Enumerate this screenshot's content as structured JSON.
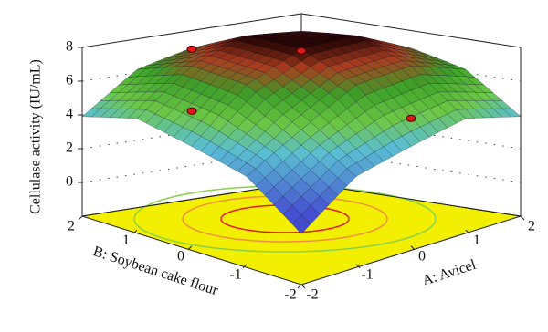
{
  "chart_data": {
    "type": "surface3d",
    "zlabel": "Cellulase activity (IU/mL)",
    "xlabel": "A: Avicel",
    "ylabel": "B: Soybean cake flour",
    "x": [
      -2,
      -1,
      0,
      1,
      2
    ],
    "y": [
      -2,
      -1,
      0,
      1,
      2
    ],
    "z": [
      [
        1.0,
        3.2,
        3.9,
        4.6,
        3.9
      ],
      [
        3.2,
        4.9,
        6.6,
        6.9,
        6.0
      ],
      [
        3.9,
        6.6,
        7.9,
        8.0,
        6.7
      ],
      [
        4.6,
        6.9,
        8.0,
        7.7,
        6.2
      ],
      [
        3.9,
        6.0,
        6.7,
        6.2,
        4.3
      ]
    ],
    "xlim": [
      -2,
      2
    ],
    "ylim": [
      -2,
      2
    ],
    "zlim": [
      -2,
      8
    ],
    "xticks": [
      -2,
      -1,
      0,
      1,
      2
    ],
    "yticks": [
      -2,
      -1,
      0,
      1,
      2
    ],
    "zticks": [
      0,
      2,
      4,
      6,
      8
    ],
    "points": {
      "color": "#e01818",
      "x": [
        0,
        -1,
        -2,
        1
      ],
      "y": [
        0,
        1,
        0,
        -1
      ],
      "z": [
        7.8,
        7.9,
        6.0,
        3.8
      ]
    },
    "floor_color": "#f2f000"
  }
}
